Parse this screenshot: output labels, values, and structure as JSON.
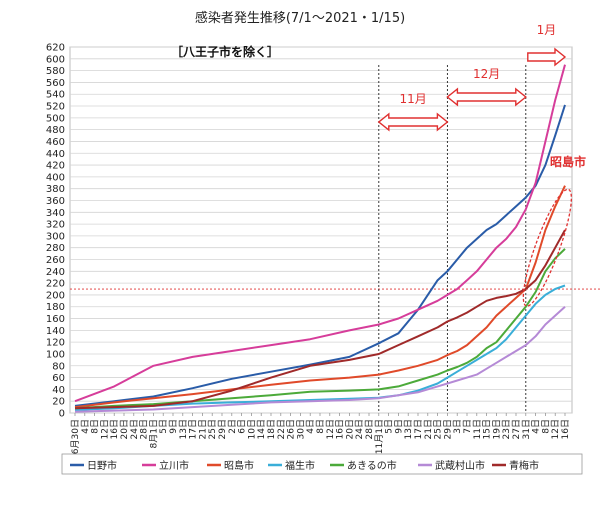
{
  "chart_data": {
    "type": "line",
    "title": "感染者発生推移(7/1～2021・1/15)",
    "subtitle": "［八王子市を除く］",
    "xlabel": "",
    "ylabel": "",
    "ylim": [
      0,
      620
    ],
    "yticks": [
      0,
      20,
      40,
      60,
      80,
      100,
      120,
      140,
      160,
      180,
      200,
      220,
      240,
      260,
      280,
      300,
      320,
      340,
      360,
      380,
      400,
      420,
      440,
      460,
      480,
      500,
      520,
      540,
      560,
      580,
      600,
      620
    ],
    "grid": true,
    "legend_position": "bottom",
    "xtick_labels": [
      "6月30日",
      "4日",
      "8日",
      "12日",
      "16日",
      "20日",
      "24日",
      "28日",
      "8月1日",
      "5日",
      "9日",
      "13日",
      "17日",
      "21日",
      "25日",
      "29日",
      "2日",
      "6日",
      "10日",
      "14日",
      "18日",
      "22日",
      "26日",
      "30日",
      "4日",
      "8日",
      "12日",
      "16日",
      "20日",
      "24日",
      "28日",
      "11月1日",
      "5日",
      "9日",
      "13日",
      "17日",
      "21日",
      "25日",
      "29日",
      "3日",
      "7日",
      "11日",
      "15日",
      "19日",
      "23日",
      "27日",
      "31日",
      "4日",
      "8日",
      "12日",
      "16日"
    ],
    "annotations": {
      "reference_value": 210,
      "periods": [
        {
          "label": "11月",
          "tick_start": 31,
          "tick_end": 38
        },
        {
          "label": "12月",
          "tick_start": 38,
          "tick_end": 46
        },
        {
          "label": "1月",
          "tick_start": 46,
          "tick_end": 50
        }
      ],
      "highlight_label": "昭島市"
    },
    "series": [
      {
        "name": "日野市",
        "color": "#2a5ca8",
        "points": [
          [
            0,
            12
          ],
          [
            4,
            20
          ],
          [
            8,
            28
          ],
          [
            12,
            42
          ],
          [
            16,
            58
          ],
          [
            20,
            70
          ],
          [
            24,
            82
          ],
          [
            28,
            95
          ],
          [
            31,
            118
          ],
          [
            33,
            135
          ],
          [
            34,
            155
          ],
          [
            35,
            175
          ],
          [
            36,
            200
          ],
          [
            37,
            225
          ],
          [
            38,
            240
          ],
          [
            39,
            260
          ],
          [
            40,
            280
          ],
          [
            41,
            295
          ],
          [
            42,
            310
          ],
          [
            43,
            320
          ],
          [
            44,
            335
          ],
          [
            45,
            350
          ],
          [
            46,
            365
          ],
          [
            47,
            385
          ],
          [
            48,
            420
          ],
          [
            49,
            470
          ],
          [
            50,
            522
          ]
        ]
      },
      {
        "name": "立川市",
        "color": "#d63d9a",
        "points": [
          [
            0,
            20
          ],
          [
            4,
            45
          ],
          [
            8,
            80
          ],
          [
            12,
            95
          ],
          [
            16,
            105
          ],
          [
            20,
            115
          ],
          [
            24,
            125
          ],
          [
            28,
            140
          ],
          [
            31,
            150
          ],
          [
            33,
            160
          ],
          [
            35,
            175
          ],
          [
            37,
            190
          ],
          [
            38,
            200
          ],
          [
            39,
            210
          ],
          [
            40,
            225
          ],
          [
            41,
            240
          ],
          [
            42,
            260
          ],
          [
            43,
            280
          ],
          [
            44,
            295
          ],
          [
            45,
            315
          ],
          [
            46,
            345
          ],
          [
            47,
            390
          ],
          [
            48,
            460
          ],
          [
            49,
            530
          ],
          [
            50,
            590
          ]
        ]
      },
      {
        "name": "昭島市",
        "color": "#e04a2a",
        "points": [
          [
            0,
            10
          ],
          [
            4,
            18
          ],
          [
            8,
            25
          ],
          [
            12,
            32
          ],
          [
            16,
            40
          ],
          [
            20,
            48
          ],
          [
            24,
            55
          ],
          [
            28,
            60
          ],
          [
            31,
            65
          ],
          [
            33,
            72
          ],
          [
            35,
            80
          ],
          [
            37,
            90
          ],
          [
            38,
            98
          ],
          [
            39,
            105
          ],
          [
            40,
            115
          ],
          [
            41,
            130
          ],
          [
            42,
            145
          ],
          [
            43,
            165
          ],
          [
            44,
            180
          ],
          [
            45,
            195
          ],
          [
            46,
            210
          ],
          [
            47,
            255
          ],
          [
            48,
            310
          ],
          [
            49,
            350
          ],
          [
            50,
            385
          ]
        ]
      },
      {
        "name": "福生市",
        "color": "#3aaed8",
        "points": [
          [
            0,
            5
          ],
          [
            4,
            8
          ],
          [
            8,
            12
          ],
          [
            12,
            16
          ],
          [
            16,
            18
          ],
          [
            20,
            20
          ],
          [
            24,
            22
          ],
          [
            28,
            24
          ],
          [
            31,
            26
          ],
          [
            33,
            30
          ],
          [
            35,
            38
          ],
          [
            37,
            50
          ],
          [
            38,
            60
          ],
          [
            39,
            70
          ],
          [
            40,
            80
          ],
          [
            41,
            90
          ],
          [
            42,
            100
          ],
          [
            43,
            110
          ],
          [
            44,
            125
          ],
          [
            45,
            145
          ],
          [
            46,
            165
          ],
          [
            47,
            185
          ],
          [
            48,
            200
          ],
          [
            49,
            210
          ],
          [
            50,
            216
          ]
        ]
      },
      {
        "name": "あきるの市",
        "color": "#4caa3a",
        "points": [
          [
            0,
            8
          ],
          [
            4,
            12
          ],
          [
            8,
            15
          ],
          [
            12,
            20
          ],
          [
            16,
            25
          ],
          [
            20,
            30
          ],
          [
            24,
            36
          ],
          [
            28,
            38
          ],
          [
            31,
            40
          ],
          [
            33,
            45
          ],
          [
            35,
            55
          ],
          [
            37,
            65
          ],
          [
            38,
            72
          ],
          [
            39,
            78
          ],
          [
            40,
            85
          ],
          [
            41,
            95
          ],
          [
            42,
            110
          ],
          [
            43,
            120
          ],
          [
            44,
            140
          ],
          [
            45,
            160
          ],
          [
            46,
            180
          ],
          [
            47,
            205
          ],
          [
            48,
            240
          ],
          [
            49,
            262
          ],
          [
            50,
            278
          ]
        ]
      },
      {
        "name": "武蔵村山市",
        "color": "#b58ad6",
        "points": [
          [
            0,
            2
          ],
          [
            4,
            4
          ],
          [
            8,
            6
          ],
          [
            12,
            10
          ],
          [
            16,
            14
          ],
          [
            20,
            18
          ],
          [
            24,
            20
          ],
          [
            28,
            22
          ],
          [
            31,
            25
          ],
          [
            33,
            30
          ],
          [
            35,
            35
          ],
          [
            37,
            45
          ],
          [
            38,
            50
          ],
          [
            39,
            55
          ],
          [
            40,
            60
          ],
          [
            41,
            65
          ],
          [
            42,
            75
          ],
          [
            43,
            85
          ],
          [
            44,
            95
          ],
          [
            45,
            105
          ],
          [
            46,
            115
          ],
          [
            47,
            130
          ],
          [
            48,
            150
          ],
          [
            49,
            165
          ],
          [
            50,
            180
          ]
        ]
      },
      {
        "name": "青梅市",
        "color": "#a02a2a",
        "points": [
          [
            0,
            8
          ],
          [
            4,
            10
          ],
          [
            8,
            12
          ],
          [
            12,
            20
          ],
          [
            16,
            38
          ],
          [
            20,
            60
          ],
          [
            24,
            80
          ],
          [
            28,
            90
          ],
          [
            31,
            100
          ],
          [
            33,
            115
          ],
          [
            35,
            130
          ],
          [
            37,
            145
          ],
          [
            38,
            155
          ],
          [
            39,
            162
          ],
          [
            40,
            170
          ],
          [
            41,
            180
          ],
          [
            42,
            190
          ],
          [
            43,
            195
          ],
          [
            44,
            198
          ],
          [
            45,
            202
          ],
          [
            46,
            210
          ],
          [
            47,
            225
          ],
          [
            48,
            250
          ],
          [
            49,
            280
          ],
          [
            50,
            310
          ]
        ]
      }
    ]
  }
}
